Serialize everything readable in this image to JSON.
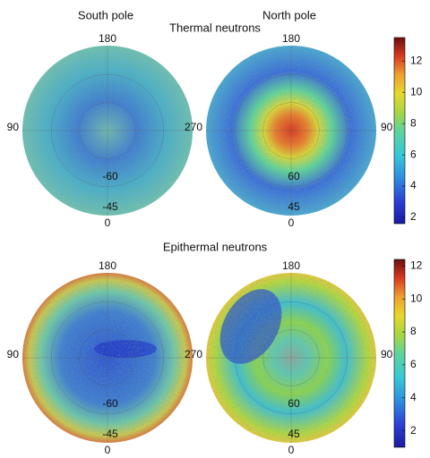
{
  "column_titles": [
    "South pole",
    "North pole"
  ],
  "panels": [
    {
      "title": "Thermal neutrons",
      "colorbar": {
        "lim": [
          1.6,
          13.5
        ],
        "ticks": [
          2,
          4,
          6,
          8,
          10,
          12
        ]
      },
      "maps": [
        {
          "top": "180",
          "left": "90",
          "bottom": "0",
          "inner": [
            "-60",
            "-45"
          ]
        },
        {
          "top": "180",
          "left": "270",
          "right": "90",
          "bottom": "0",
          "inner": [
            "60",
            "45"
          ]
        }
      ]
    },
    {
      "title": "Epithermal neutrons",
      "colorbar": {
        "lim": [
          1,
          12.4
        ],
        "ticks": [
          2,
          4,
          6,
          8,
          10,
          12
        ]
      },
      "maps": [
        {
          "top": "180",
          "left": "90",
          "bottom": "0",
          "inner": [
            "-60",
            "-45"
          ]
        },
        {
          "top": "180",
          "left": "270",
          "right": "90",
          "bottom": "0",
          "inner": [
            "60",
            "45"
          ]
        }
      ]
    }
  ]
}
